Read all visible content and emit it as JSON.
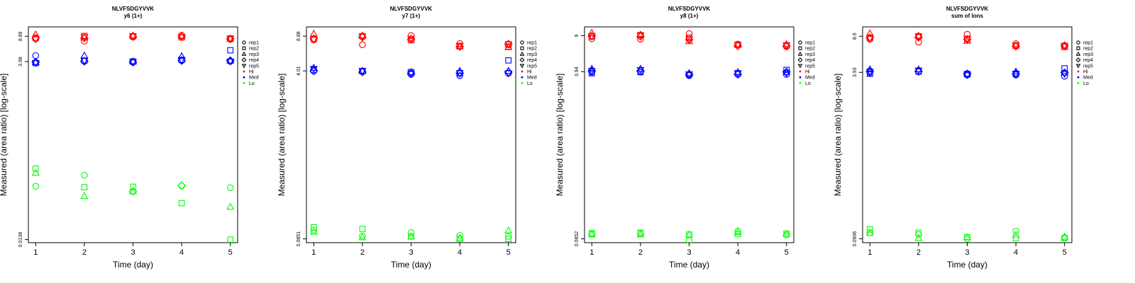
{
  "figure": {
    "colors": {
      "Hi": "#ff0000",
      "Med": "#0000ff",
      "Lo": "#00ff00",
      "axis": "#000000"
    }
  },
  "legend": {
    "reps": [
      {
        "label": "rep1",
        "shape": "circle"
      },
      {
        "label": "rep2",
        "shape": "square"
      },
      {
        "label": "rep3",
        "shape": "triangle-up"
      },
      {
        "label": "rep4",
        "shape": "diamond"
      },
      {
        "label": "rep5",
        "shape": "triangle-down"
      }
    ],
    "levels": [
      {
        "label": "Hi",
        "color": "#ff0000"
      },
      {
        "label": "Med",
        "color": "#0000ff"
      },
      {
        "label": "Lo",
        "color": "#00ff00"
      }
    ]
  },
  "chart_data": [
    {
      "type": "scatter",
      "title": "NLVFSDGYVVK",
      "subtitle": "y6 (1+)",
      "xlabel": "Time (day)",
      "ylabel": "Measured (area ratio) [log-scale]",
      "x_ticks": [
        1,
        2,
        3,
        4,
        5
      ],
      "y_ticks": [
        "0.0138",
        "3.98",
        "8.89"
      ],
      "y_scale": "log",
      "ylim": [
        0.0125,
        12
      ],
      "legend_position": "right",
      "series": [
        {
          "level": "Hi",
          "rep": "rep1",
          "x": [
            1,
            2,
            3,
            4,
            5
          ],
          "y": [
            8.2,
            7.6,
            8.7,
            9.2,
            8.1
          ]
        },
        {
          "level": "Hi",
          "rep": "rep2",
          "x": [
            1,
            2,
            3,
            4,
            5
          ],
          "y": [
            8.5,
            9.0,
            8.9,
            8.6,
            8.3
          ]
        },
        {
          "level": "Hi",
          "rep": "rep3",
          "x": [
            1,
            2,
            3,
            4,
            5
          ],
          "y": [
            9.4,
            8.6,
            9.1,
            8.9,
            8.2
          ]
        },
        {
          "level": "Hi",
          "rep": "rep4",
          "x": [
            1,
            2,
            3,
            4,
            5
          ],
          "y": [
            8.3,
            8.4,
            8.8,
            8.8,
            8.2
          ]
        },
        {
          "level": "Hi",
          "rep": "rep5",
          "x": [
            1,
            2,
            3,
            4,
            5
          ],
          "y": [
            8.1,
            8.7,
            8.9,
            8.7,
            8.3
          ]
        },
        {
          "level": "Med",
          "rep": "rep1",
          "x": [
            1,
            2,
            3,
            4,
            5
          ],
          "y": [
            4.8,
            4.1,
            3.9,
            4.1,
            4.0
          ]
        },
        {
          "level": "Med",
          "rep": "rep2",
          "x": [
            1,
            2,
            3,
            4,
            5
          ],
          "y": [
            3.8,
            4.1,
            4.0,
            4.2,
            5.7
          ]
        },
        {
          "level": "Med",
          "rep": "rep3",
          "x": [
            1,
            2,
            3,
            4,
            5
          ],
          "y": [
            3.9,
            4.8,
            4.0,
            4.7,
            4.1
          ]
        },
        {
          "level": "Med",
          "rep": "rep4",
          "x": [
            1,
            2,
            3,
            4,
            5
          ],
          "y": [
            3.9,
            4.0,
            3.9,
            4.1,
            4.1
          ]
        },
        {
          "level": "Med",
          "rep": "rep5",
          "x": [
            1,
            2,
            3,
            4,
            5
          ],
          "y": [
            3.8,
            4.1,
            3.9,
            4.2,
            4.0
          ]
        },
        {
          "level": "Lo",
          "rep": "rep1",
          "x": [
            1,
            2,
            3,
            4,
            5
          ],
          "y": [
            0.075,
            null,
            null,
            0.076,
            0.072
          ]
        },
        {
          "level": "Lo",
          "rep": "rep1b",
          "x": [
            2
          ],
          "y": [
            0.107
          ]
        },
        {
          "level": "Lo",
          "rep": "rep2",
          "x": [
            1,
            2,
            3,
            4,
            5
          ],
          "y": [
            0.132,
            0.073,
            0.074,
            null,
            0.0138
          ]
        },
        {
          "level": "Lo",
          "rep": "rep2b",
          "x": [
            4
          ],
          "y": [
            0.044
          ]
        },
        {
          "level": "Lo",
          "rep": "rep3",
          "x": [
            1,
            2,
            3,
            4,
            5
          ],
          "y": [
            0.115,
            0.055,
            0.064,
            null,
            0.039
          ]
        },
        {
          "level": "Lo",
          "rep": "rep4",
          "x": [
            3,
            4
          ],
          "y": [
            0.064,
            0.077
          ]
        }
      ]
    },
    {
      "type": "scatter",
      "title": "NLVFSDGYVVK",
      "subtitle": "y7 (1+)",
      "xlabel": "Time (day)",
      "ylabel": "Measured (area ratio) [log-scale]",
      "x_ticks": [
        1,
        2,
        3,
        4,
        5
      ],
      "y_ticks": [
        "0.0851",
        "4.01",
        "8.88"
      ],
      "y_scale": "log",
      "ylim": [
        0.078,
        11
      ],
      "legend_position": "right",
      "series": [
        {
          "level": "Hi",
          "rep": "rep1",
          "x": [
            1,
            2,
            3,
            4,
            5
          ],
          "y": [
            8.2,
            7.3,
            9.0,
            7.5,
            7.3
          ]
        },
        {
          "level": "Hi",
          "rep": "rep2",
          "x": [
            1,
            2,
            3,
            4,
            5
          ],
          "y": [
            8.3,
            8.9,
            8.1,
            7.1,
            7.0
          ]
        },
        {
          "level": "Hi",
          "rep": "rep3",
          "x": [
            1,
            2,
            3,
            4,
            5
          ],
          "y": [
            9.4,
            9.0,
            8.4,
            7.0,
            6.9
          ]
        },
        {
          "level": "Hi",
          "rep": "rep4",
          "x": [
            1,
            2,
            3,
            4,
            5
          ],
          "y": [
            8.4,
            8.7,
            8.3,
            7.0,
            7.4
          ]
        },
        {
          "level": "Hi",
          "rep": "rep5",
          "x": [
            1,
            2,
            3,
            4,
            5
          ],
          "y": [
            8.2,
            8.8,
            8.4,
            7.1,
            7.4
          ]
        },
        {
          "level": "Med",
          "rep": "rep1",
          "x": [
            1,
            2,
            3,
            4,
            5
          ],
          "y": [
            4.0,
            4.0,
            3.7,
            3.6,
            3.8
          ]
        },
        {
          "level": "Med",
          "rep": "rep2",
          "x": [
            1,
            2,
            3,
            4,
            5
          ],
          "y": [
            4.1,
            4.0,
            3.9,
            3.8,
            5.1
          ]
        },
        {
          "level": "Med",
          "rep": "rep3",
          "x": [
            1,
            2,
            3,
            4,
            5
          ],
          "y": [
            4.3,
            4.0,
            3.9,
            4.0,
            4.0
          ]
        },
        {
          "level": "Med",
          "rep": "rep4",
          "x": [
            1,
            2,
            3,
            4,
            5
          ],
          "y": [
            4.0,
            3.9,
            3.8,
            3.8,
            3.9
          ]
        },
        {
          "level": "Med",
          "rep": "rep5",
          "x": [
            1,
            2,
            3,
            4,
            5
          ],
          "y": [
            4.2,
            4.0,
            3.8,
            3.8,
            3.8
          ]
        },
        {
          "level": "Lo",
          "rep": "rep1",
          "x": [
            1,
            2,
            3,
            4,
            5
          ],
          "y": [
            0.104,
            0.091,
            0.098,
            0.092,
            0.09
          ]
        },
        {
          "level": "Lo",
          "rep": "rep2",
          "x": [
            1,
            2,
            3,
            4,
            5
          ],
          "y": [
            0.111,
            0.107,
            0.09,
            0.085,
            0.085
          ]
        },
        {
          "level": "Lo",
          "rep": "rep3",
          "x": [
            1,
            2,
            3,
            4,
            5
          ],
          "y": [
            0.1,
            0.088,
            0.09,
            0.087,
            0.103
          ]
        }
      ]
    },
    {
      "type": "scatter",
      "title": "NLVFSDGYVVK",
      "subtitle": "y8 (1+)",
      "xlabel": "Time (day)",
      "ylabel": "Measured (area ratio) [log-scale]",
      "x_ticks": [
        1,
        2,
        3,
        4,
        5
      ],
      "y_ticks": [
        "0.0852",
        "3.94",
        "9"
      ],
      "y_scale": "log",
      "ylim": [
        0.078,
        11
      ],
      "legend_position": "right",
      "series": [
        {
          "level": "Hi",
          "rep": "rep1",
          "x": [
            1,
            2,
            3,
            4,
            5
          ],
          "y": [
            8.4,
            8.3,
            9.4,
            7.4,
            7.0
          ]
        },
        {
          "level": "Hi",
          "rep": "rep2",
          "x": [
            1,
            2,
            3,
            4,
            5
          ],
          "y": [
            8.8,
            9.1,
            8.6,
            7.3,
            7.2
          ]
        },
        {
          "level": "Hi",
          "rep": "rep3",
          "x": [
            1,
            2,
            3,
            4,
            5
          ],
          "y": [
            9.6,
            9.2,
            7.9,
            7.3,
            7.4
          ]
        },
        {
          "level": "Hi",
          "rep": "rep4",
          "x": [
            1,
            2,
            3,
            4,
            5
          ],
          "y": [
            8.9,
            8.8,
            8.2,
            7.1,
            7.1
          ]
        },
        {
          "level": "Hi",
          "rep": "rep5",
          "x": [
            1,
            2,
            3,
            4,
            5
          ],
          "y": [
            8.9,
            9.0,
            8.3,
            7.3,
            7.2
          ]
        },
        {
          "level": "Med",
          "rep": "rep1",
          "x": [
            1,
            2,
            3,
            4,
            5
          ],
          "y": [
            3.9,
            3.9,
            3.6,
            3.7,
            3.7
          ]
        },
        {
          "level": "Med",
          "rep": "rep2",
          "x": [
            1,
            2,
            3,
            4,
            5
          ],
          "y": [
            3.8,
            3.9,
            3.7,
            3.8,
            4.1
          ]
        },
        {
          "level": "Med",
          "rep": "rep3",
          "x": [
            1,
            2,
            3,
            4,
            5
          ],
          "y": [
            4.2,
            4.2,
            3.8,
            3.9,
            3.9
          ]
        },
        {
          "level": "Med",
          "rep": "rep4",
          "x": [
            1,
            2,
            3,
            4,
            5
          ],
          "y": [
            4.0,
            4.0,
            3.7,
            3.7,
            3.9
          ]
        },
        {
          "level": "Med",
          "rep": "rep5",
          "x": [
            1,
            2,
            3,
            4,
            5
          ],
          "y": [
            4.0,
            4.1,
            3.7,
            3.8,
            3.8
          ]
        },
        {
          "level": "Lo",
          "rep": "rep1",
          "x": [
            1,
            2,
            3,
            4,
            5
          ],
          "y": [
            0.095,
            0.096,
            0.082,
            0.102,
            0.093
          ]
        },
        {
          "level": "Lo",
          "rep": "rep2",
          "x": [
            1,
            2,
            3,
            4,
            5
          ],
          "y": [
            0.097,
            0.098,
            0.094,
            0.095,
            0.096
          ]
        },
        {
          "level": "Lo",
          "rep": "rep3",
          "x": [
            1,
            2,
            3,
            4,
            5
          ],
          "y": [
            0.094,
            0.094,
            0.094,
            0.099,
            0.095
          ]
        }
      ]
    },
    {
      "type": "scatter",
      "title": "NLVFSDGYVVK",
      "subtitle": "sum of Ions",
      "xlabel": "Time (day)",
      "ylabel": "Measured (area ratio) [log-scale]",
      "x_ticks": [
        1,
        2,
        3,
        4,
        5
      ],
      "y_ticks": [
        "0.0906",
        "3.93",
        "8.9"
      ],
      "y_scale": "log",
      "ylim": [
        0.083,
        11
      ],
      "legend_position": "right",
      "series": [
        {
          "level": "Hi",
          "rep": "rep1",
          "x": [
            1,
            2,
            3,
            4,
            5
          ],
          "y": [
            8.3,
            7.8,
            9.3,
            7.5,
            7.0
          ]
        },
        {
          "level": "Hi",
          "rep": "rep2",
          "x": [
            1,
            2,
            3,
            4,
            5
          ],
          "y": [
            8.6,
            8.9,
            8.4,
            7.2,
            7.0
          ]
        },
        {
          "level": "Hi",
          "rep": "rep3",
          "x": [
            1,
            2,
            3,
            4,
            5
          ],
          "y": [
            9.5,
            9.0,
            8.0,
            7.2,
            7.2
          ]
        },
        {
          "level": "Hi",
          "rep": "rep4",
          "x": [
            1,
            2,
            3,
            4,
            5
          ],
          "y": [
            8.6,
            8.7,
            8.3,
            7.1,
            7.2
          ]
        },
        {
          "level": "Hi",
          "rep": "rep5",
          "x": [
            1,
            2,
            3,
            4,
            5
          ],
          "y": [
            8.5,
            8.8,
            8.4,
            7.2,
            7.2
          ]
        },
        {
          "level": "Med",
          "rep": "rep1",
          "x": [
            1,
            2,
            3,
            4,
            5
          ],
          "y": [
            3.9,
            4.0,
            3.7,
            3.7,
            3.6
          ]
        },
        {
          "level": "Med",
          "rep": "rep2",
          "x": [
            1,
            2,
            3,
            4,
            5
          ],
          "y": [
            3.8,
            4.0,
            3.8,
            3.8,
            4.3
          ]
        },
        {
          "level": "Med",
          "rep": "rep3",
          "x": [
            1,
            2,
            3,
            4,
            5
          ],
          "y": [
            4.2,
            4.2,
            3.8,
            4.0,
            3.9
          ]
        },
        {
          "level": "Med",
          "rep": "rep4",
          "x": [
            1,
            2,
            3,
            4,
            5
          ],
          "y": [
            4.0,
            4.0,
            3.8,
            3.8,
            3.9
          ]
        },
        {
          "level": "Med",
          "rep": "rep5",
          "x": [
            1,
            2,
            3,
            4,
            5
          ],
          "y": [
            4.0,
            4.1,
            3.7,
            3.8,
            3.8
          ]
        },
        {
          "level": "Lo",
          "rep": "rep1",
          "x": [
            1,
            2,
            3,
            4,
            5
          ],
          "y": [
            0.104,
            0.1,
            0.09,
            0.108,
            0.093
          ]
        },
        {
          "level": "Lo",
          "rep": "rep2",
          "x": [
            1,
            2,
            3,
            4,
            5
          ],
          "y": [
            0.112,
            0.104,
            0.094,
            0.092,
            0.092
          ]
        },
        {
          "level": "Lo",
          "rep": "rep3",
          "x": [
            1,
            2,
            3,
            4,
            5
          ],
          "y": [
            0.103,
            0.092,
            0.094,
            0.099,
            0.095
          ]
        }
      ]
    }
  ]
}
